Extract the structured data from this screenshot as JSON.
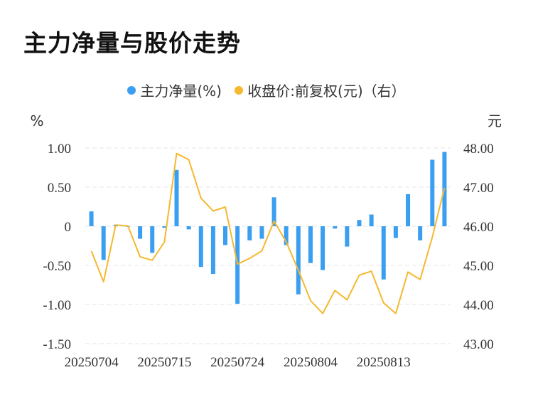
{
  "title": "主力净量与股价走势",
  "chart_data": {
    "type": "bar+line",
    "series": [
      {
        "name": "主力净量(%)",
        "type": "bar",
        "axis": "left",
        "color": "#3a9ff0",
        "values": [
          0.19,
          -0.43,
          0.02,
          0,
          -0.16,
          -0.34,
          -0.02,
          0.72,
          -0.04,
          -0.52,
          -0.61,
          -0.24,
          -0.99,
          -0.18,
          -0.16,
          0.37,
          -0.24,
          -0.87,
          -0.47,
          -0.56,
          -0.03,
          -0.26,
          0.08,
          0.15,
          -0.68,
          -0.15,
          0.41,
          -0.18,
          0.85,
          0.95
        ]
      },
      {
        "name": "收盘价:前复权(元)（右）",
        "type": "line",
        "axis": "right",
        "color": "#f5b82e",
        "values": [
          45.37,
          44.58,
          46.03,
          46.01,
          45.22,
          45.13,
          45.6,
          47.86,
          47.7,
          46.72,
          46.39,
          46.49,
          45.03,
          45.18,
          45.37,
          46.13,
          45.6,
          44.88,
          44.1,
          43.77,
          44.36,
          44.12,
          44.75,
          44.85,
          44.04,
          43.77,
          44.83,
          44.64,
          45.72,
          46.98
        ]
      }
    ],
    "x_tick_labels": [
      "20250704",
      "20250715",
      "20250724",
      "20250804",
      "20250813"
    ],
    "x_tick_index": [
      0,
      6,
      12,
      18,
      24
    ],
    "left_axis": {
      "unit": "%",
      "ylim": [
        -1.5,
        1.0
      ],
      "ticks": [
        "1.00",
        "0.50",
        "0",
        "-0.50",
        "-1.00",
        "-1.50"
      ],
      "tick_values": [
        1.0,
        0.5,
        0,
        -0.5,
        -1.0,
        -1.5
      ]
    },
    "right_axis": {
      "unit": "元",
      "ylim": [
        43.0,
        48.0
      ],
      "ticks": [
        "48.00",
        "47.00",
        "46.00",
        "45.00",
        "44.00",
        "43.00"
      ],
      "tick_values": [
        48,
        47,
        46,
        45,
        44,
        43
      ]
    },
    "grid": "horizontal-dashed",
    "legend_position": "top-center"
  }
}
